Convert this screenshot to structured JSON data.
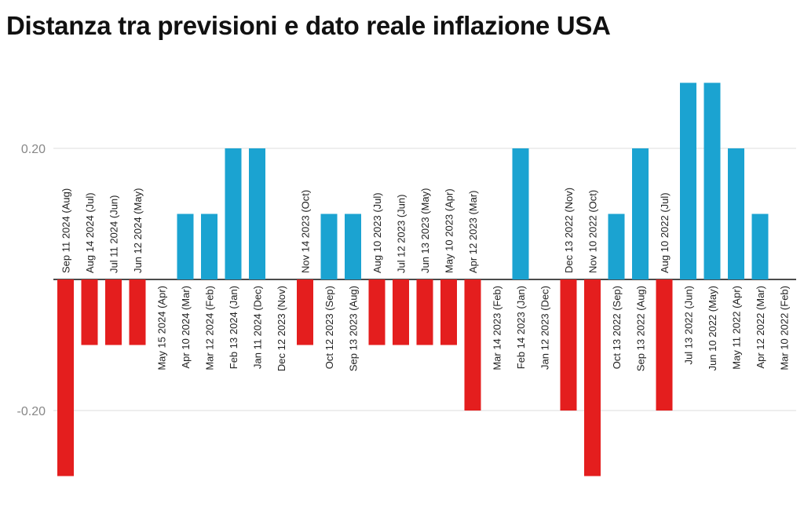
{
  "chart_data": {
    "type": "bar",
    "title": "Distanza tra previsioni e dato reale inflazione USA",
    "xlabel": "",
    "ylabel": "",
    "ylim": [
      -0.3,
      0.3
    ],
    "y_ticks": [
      -0.2,
      0.2
    ],
    "y_tick_labels": [
      "-0.20",
      "0.20"
    ],
    "grid": true,
    "legend": "none",
    "colors": {
      "positive": "#1ba3d1",
      "negative": "#e41e1e",
      "zero_line": "#111111",
      "grid": "#dddddd"
    },
    "categories": [
      "Sep 11 2024 (Aug)",
      "Aug 14 2024 (Jul)",
      "Jul 11 2024 (Jun)",
      "Jun 12 2024 (May)",
      "May 15 2024 (Apr)",
      "Apr 10 2024 (Mar)",
      "Mar 12 2024 (Feb)",
      "Feb 13 2024 (Jan)",
      "Jan 11 2024 (Dec)",
      "Dec 12 2023 (Nov)",
      "Nov 14 2023 (Oct)",
      "Oct 12 2023 (Sep)",
      "Sep 13 2023 (Aug)",
      "Aug 10 2023 (Jul)",
      "Jul 12 2023 (Jun)",
      "Jun 13 2023 (May)",
      "May 10 2023 (Apr)",
      "Apr 12 2023 (Mar)",
      "Mar 14 2023 (Feb)",
      "Feb 14 2023 (Jan)",
      "Jan 12 2023 (Dec)",
      "Dec 13 2022 (Nov)",
      "Nov 10 2022 (Oct)",
      "Oct 13 2022 (Sep)",
      "Sep 13 2022 (Aug)",
      "Aug 10 2022 (Jul)",
      "Jul 13 2022 (Jun)",
      "Jun 10 2022 (May)",
      "May 11 2022 (Apr)",
      "Apr 12 2022 (Mar)",
      "Mar 10 2022 (Feb)"
    ],
    "values": [
      -0.3,
      -0.1,
      -0.1,
      -0.1,
      0,
      0.1,
      0.1,
      0.2,
      0.2,
      0,
      -0.1,
      0.1,
      0.1,
      -0.1,
      -0.1,
      -0.1,
      -0.1,
      -0.2,
      0,
      0.2,
      0,
      -0.2,
      -0.3,
      0.1,
      0.2,
      -0.2,
      0.3,
      0.3,
      0.2,
      0.1,
      0
    ]
  }
}
